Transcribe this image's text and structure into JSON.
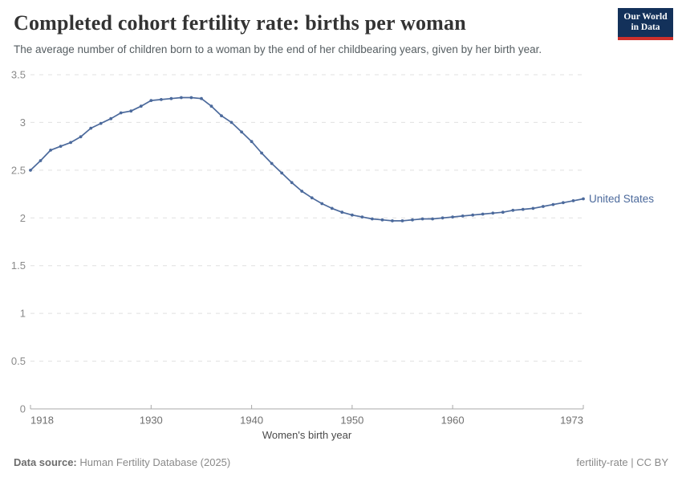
{
  "header": {
    "title": "Completed cohort fertility rate: births per woman",
    "subtitle": "The average number of children born to a woman by the end of her childbearing years, given by her birth year.",
    "logo": {
      "line1": "Our World",
      "line2": "in Data"
    }
  },
  "chart_data": {
    "type": "line",
    "title": "Completed cohort fertility rate: births per woman",
    "xlabel": "Women's birth year",
    "ylabel": "",
    "ylim": [
      0,
      3.5
    ],
    "yticks": [
      0,
      0.5,
      1,
      1.5,
      2,
      2.5,
      3,
      3.5
    ],
    "ytick_labels": [
      "0",
      "0.5",
      "1",
      "1.5",
      "2",
      "2.5",
      "3",
      "3.5"
    ],
    "xticks": [
      1918,
      1930,
      1940,
      1950,
      1960,
      1973
    ],
    "grid": "horizontal-dashed",
    "legend_position": "end-of-line-label",
    "x": [
      1918,
      1919,
      1920,
      1921,
      1922,
      1923,
      1924,
      1925,
      1926,
      1927,
      1928,
      1929,
      1930,
      1931,
      1932,
      1933,
      1934,
      1935,
      1936,
      1937,
      1938,
      1939,
      1940,
      1941,
      1942,
      1943,
      1944,
      1945,
      1946,
      1947,
      1948,
      1949,
      1950,
      1951,
      1952,
      1953,
      1954,
      1955,
      1956,
      1957,
      1958,
      1959,
      1960,
      1961,
      1962,
      1963,
      1964,
      1965,
      1966,
      1967,
      1968,
      1969,
      1970,
      1971,
      1972,
      1973
    ],
    "series": [
      {
        "name": "United States",
        "color": "#4c6a9c",
        "values": [
          2.5,
          2.6,
          2.71,
          2.75,
          2.79,
          2.85,
          2.94,
          2.99,
          3.04,
          3.1,
          3.12,
          3.17,
          3.23,
          3.24,
          3.25,
          3.26,
          3.26,
          3.25,
          3.17,
          3.07,
          3.0,
          2.9,
          2.8,
          2.68,
          2.57,
          2.47,
          2.37,
          2.28,
          2.21,
          2.15,
          2.1,
          2.06,
          2.03,
          2.01,
          1.99,
          1.98,
          1.97,
          1.97,
          1.98,
          1.99,
          1.99,
          2.0,
          2.01,
          2.02,
          2.03,
          2.04,
          2.05,
          2.06,
          2.08,
          2.09,
          2.1,
          2.12,
          2.14,
          2.16,
          2.18,
          2.2
        ]
      }
    ]
  },
  "footer": {
    "data_source_label": "Data source:",
    "data_source_value": "Human Fertility Database (2025)",
    "credit": "fertility-rate | CC BY"
  },
  "colors": {
    "line": "#4c6a9c",
    "grid": "#e0e0e0",
    "axis": "#a8a8a8",
    "ytick_text": "#8a8a8a",
    "xtick_text": "#6f6f6f",
    "axis_title_text": "#4a4a4a",
    "title_text": "#333333",
    "subtitle_text": "#555d61",
    "logo_bg": "#13315a",
    "logo_accent": "#ce302c"
  }
}
